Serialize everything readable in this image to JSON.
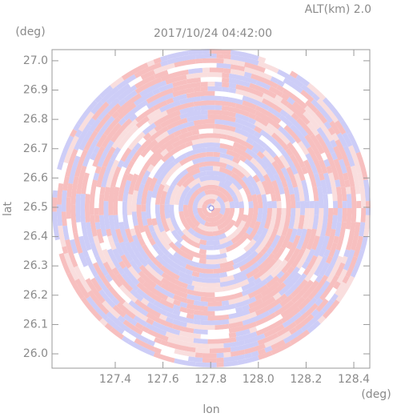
{
  "chart_data": {
    "type": "radar-ppi",
    "title": "2017/10/24 04:42:00",
    "subtitle": "ALT(km) 2.0",
    "x_label": "lon",
    "y_label": "lat",
    "x_unit": "(deg)",
    "y_unit": "(deg)",
    "xlim": [
      127.135,
      128.467
    ],
    "ylim": [
      25.951,
      27.038
    ],
    "xticks": [
      127.4,
      127.6,
      127.8,
      {
        "value": 128,
        "label": "128.0"
      },
      128.2,
      128.4
    ],
    "yticks": [
      {
        "value": 26,
        "label": "26.0"
      },
      26.1,
      26.2,
      26.3,
      26.4,
      26.5,
      26.6,
      26.7,
      26.8,
      26.9,
      {
        "value": 27,
        "label": "27.0"
      }
    ]
  }
}
